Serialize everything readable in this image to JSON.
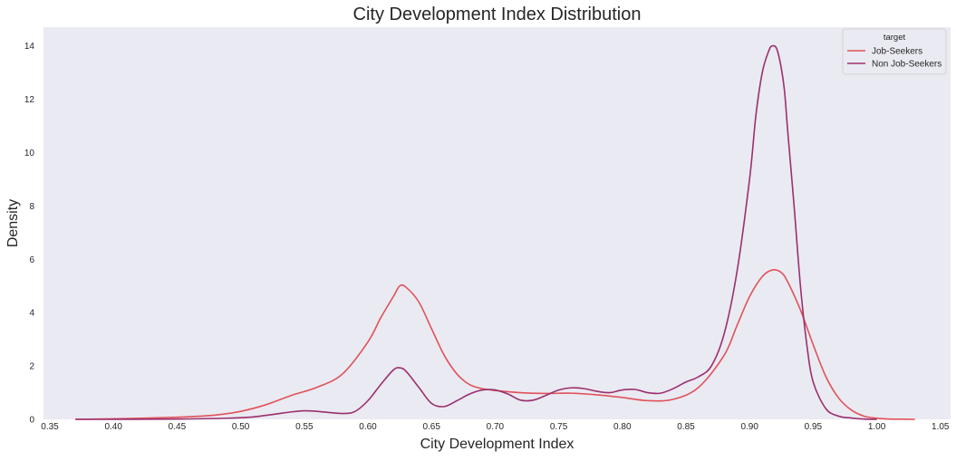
{
  "chart_data": {
    "type": "line",
    "title": "City Development Index Distribution",
    "xlabel": "City Development Index",
    "ylabel": "Density",
    "xlim": [
      0.345,
      1.058
    ],
    "ylim": [
      0,
      14.7
    ],
    "x_ticks": [
      "0.35",
      "0.40",
      "0.45",
      "0.50",
      "0.55",
      "0.60",
      "0.65",
      "0.70",
      "0.75",
      "0.80",
      "0.85",
      "0.90",
      "0.95",
      "1.00",
      "1.05"
    ],
    "y_ticks": [
      "0",
      "2",
      "4",
      "6",
      "8",
      "10",
      "12",
      "14"
    ],
    "grid": false,
    "background": "#eaeaf2",
    "legend": {
      "title": "target",
      "position": "top-right"
    },
    "series": [
      {
        "name": "Job-Seekers",
        "color": "#e0525a",
        "x": [
          0.37,
          0.4,
          0.45,
          0.48,
          0.5,
          0.52,
          0.54,
          0.56,
          0.58,
          0.6,
          0.61,
          0.62,
          0.625,
          0.63,
          0.64,
          0.65,
          0.66,
          0.67,
          0.68,
          0.69,
          0.7,
          0.72,
          0.74,
          0.76,
          0.78,
          0.8,
          0.82,
          0.84,
          0.86,
          0.88,
          0.89,
          0.9,
          0.91,
          0.918,
          0.925,
          0.93,
          0.94,
          0.95,
          0.96,
          0.97,
          0.98,
          0.99,
          1.0,
          1.01,
          1.02,
          1.03
        ],
        "y": [
          0,
          0.02,
          0.08,
          0.16,
          0.3,
          0.55,
          0.9,
          1.2,
          1.7,
          2.9,
          3.8,
          4.6,
          5.0,
          4.95,
          4.4,
          3.4,
          2.4,
          1.7,
          1.3,
          1.15,
          1.08,
          1.0,
          0.97,
          0.98,
          0.92,
          0.82,
          0.7,
          0.75,
          1.2,
          2.4,
          3.5,
          4.6,
          5.35,
          5.6,
          5.5,
          5.15,
          4.1,
          2.8,
          1.6,
          0.8,
          0.35,
          0.12,
          0.04,
          0.01,
          0.005,
          0
        ]
      },
      {
        "name": "Non Job-Seekers",
        "color": "#9b2f6d",
        "x": [
          0.37,
          0.45,
          0.5,
          0.52,
          0.54,
          0.55,
          0.56,
          0.58,
          0.59,
          0.6,
          0.61,
          0.62,
          0.625,
          0.63,
          0.64,
          0.65,
          0.66,
          0.67,
          0.68,
          0.69,
          0.7,
          0.71,
          0.72,
          0.73,
          0.74,
          0.75,
          0.76,
          0.77,
          0.78,
          0.79,
          0.8,
          0.81,
          0.82,
          0.83,
          0.84,
          0.85,
          0.86,
          0.87,
          0.88,
          0.89,
          0.9,
          0.905,
          0.91,
          0.915,
          0.918,
          0.922,
          0.927,
          0.93,
          0.935,
          0.94,
          0.945,
          0.95,
          0.96,
          0.97,
          0.98,
          0.99,
          1.0
        ],
        "y": [
          0,
          0.01,
          0.06,
          0.15,
          0.28,
          0.32,
          0.3,
          0.22,
          0.3,
          0.7,
          1.3,
          1.85,
          1.93,
          1.8,
          1.2,
          0.6,
          0.48,
          0.7,
          0.95,
          1.1,
          1.1,
          0.95,
          0.72,
          0.72,
          0.9,
          1.1,
          1.18,
          1.15,
          1.05,
          1.0,
          1.1,
          1.12,
          1.0,
          0.98,
          1.15,
          1.4,
          1.6,
          2.0,
          3.2,
          5.5,
          9.0,
          11.4,
          13.0,
          13.8,
          14.0,
          13.8,
          12.5,
          10.8,
          8.0,
          5.0,
          2.8,
          1.4,
          0.4,
          0.12,
          0.05,
          0.01,
          0
        ]
      }
    ]
  }
}
